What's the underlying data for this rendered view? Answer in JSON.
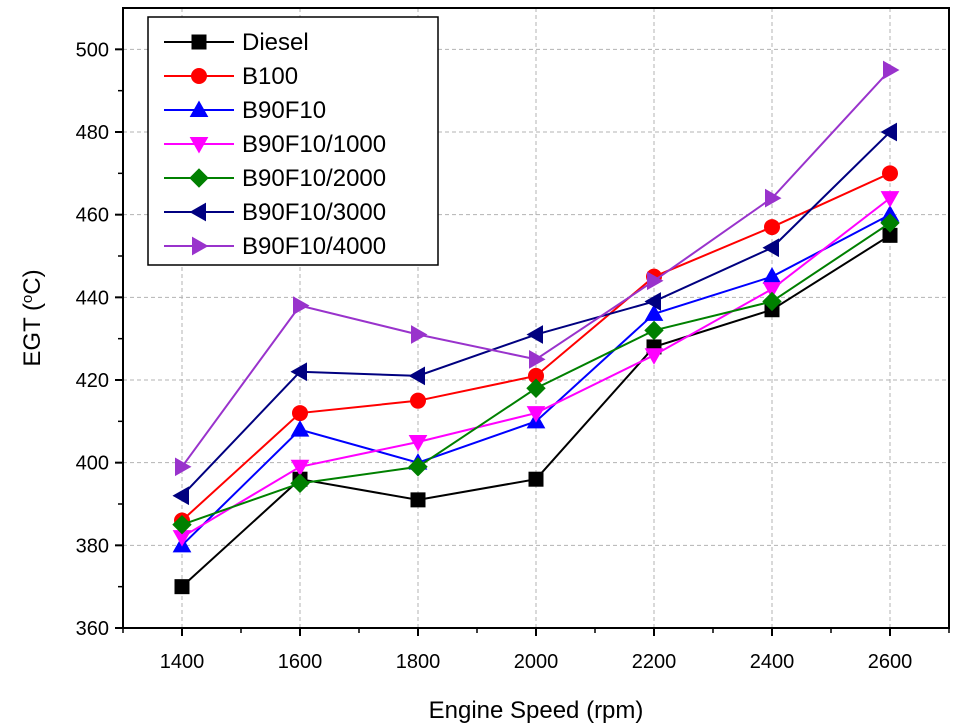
{
  "chart_data": {
    "type": "line",
    "xlabel": "Engine Speed (rpm)",
    "ylabel": {
      "main": "EGT (",
      "sup": "o",
      "unit": "C)"
    },
    "xlim": [
      1300,
      2700
    ],
    "ylim": [
      360,
      510
    ],
    "xticks": [
      1400,
      1600,
      1800,
      2000,
      2200,
      2400,
      2600
    ],
    "yticks": [
      360,
      380,
      400,
      420,
      440,
      460,
      480,
      500
    ],
    "grid": true,
    "legend_position": "top-left",
    "x": [
      1400,
      1600,
      1800,
      2000,
      2200,
      2400,
      2600
    ],
    "series": [
      {
        "name": "Diesel",
        "color": "#000000",
        "marker": "square",
        "values": [
          370,
          396,
          391,
          396,
          428,
          437,
          455
        ]
      },
      {
        "name": "B100",
        "color": "#ff0000",
        "marker": "circle",
        "values": [
          386,
          412,
          415,
          421,
          445,
          457,
          470
        ]
      },
      {
        "name": "B90F10",
        "color": "#0000ff",
        "marker": "triangle-up",
        "values": [
          380,
          408,
          400,
          410,
          436,
          445,
          460
        ]
      },
      {
        "name": "B90F10/1000",
        "color": "#ff00ff",
        "marker": "triangle-down",
        "values": [
          382,
          399,
          405,
          412,
          426,
          442,
          464
        ]
      },
      {
        "name": "B90F10/2000",
        "color": "#008000",
        "marker": "diamond",
        "values": [
          385,
          395,
          399,
          418,
          432,
          439,
          458
        ]
      },
      {
        "name": "B90F10/3000",
        "color": "#000080",
        "marker": "triangle-left",
        "values": [
          392,
          422,
          421,
          431,
          439,
          452,
          480
        ]
      },
      {
        "name": "B90F10/4000",
        "color": "#9933cc",
        "marker": "triangle-right",
        "values": [
          399,
          438,
          431,
          425,
          444,
          464,
          495
        ]
      }
    ]
  }
}
